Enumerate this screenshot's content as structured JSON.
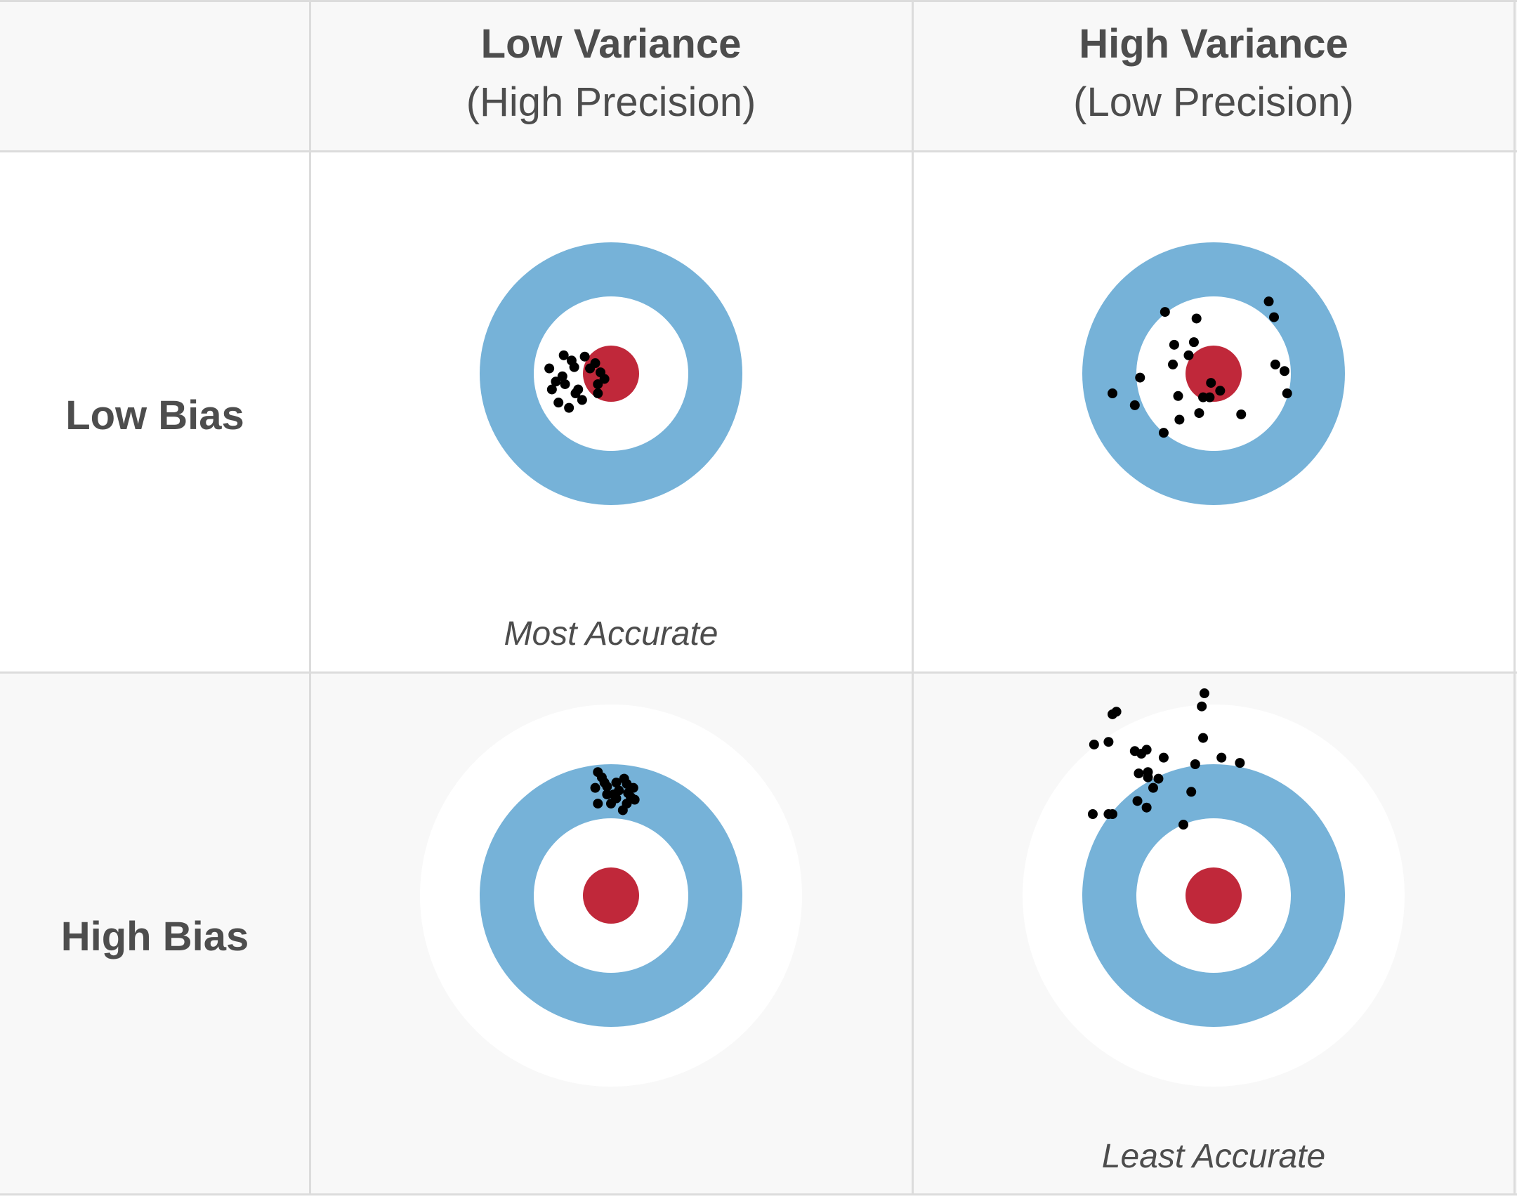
{
  "columns": [
    {
      "title": "Low Variance",
      "subtitle": "(High Precision)"
    },
    {
      "title": "High Variance",
      "subtitle": "(Low Precision)"
    }
  ],
  "rows": [
    {
      "label": "Low Bias"
    },
    {
      "label": "High Bias"
    }
  ],
  "captions": {
    "most_accurate": "Most Accurate",
    "least_accurate": "Least Accurate"
  },
  "colors": {
    "bullseye": "#c0283a",
    "ring": "#76b2d8",
    "outer": "#ffffff",
    "hits": "#000000",
    "grid_line": "#dcdcdc",
    "shaded_cell": "#f8f8f8",
    "text": "#4d4d4d"
  },
  "targets": [
    {
      "id": "low-bias-low-variance",
      "hits": [
        [
          -0.42,
          0.06
        ],
        [
          -0.37,
          0.02
        ],
        [
          -0.47,
          -0.04
        ],
        [
          -0.36,
          -0.14
        ],
        [
          -0.28,
          -0.05
        ],
        [
          -0.16,
          -0.04
        ],
        [
          -0.05,
          0.04
        ],
        [
          -0.1,
          0.15
        ],
        [
          -0.25,
          0.12
        ],
        [
          -0.32,
          0.26
        ],
        [
          -0.4,
          0.22
        ],
        [
          -0.12,
          -0.08
        ],
        [
          -0.22,
          0.2
        ],
        [
          -0.45,
          0.12
        ],
        [
          -0.2,
          -0.13
        ],
        [
          -0.1,
          0.08
        ],
        [
          -0.35,
          0.08
        ],
        [
          -0.27,
          0.15
        ],
        [
          -0.08,
          -0.01
        ],
        [
          -0.3,
          -0.1
        ]
      ]
    },
    {
      "id": "low-bias-high-variance",
      "hits": [
        [
          -0.37,
          -0.47
        ],
        [
          -0.13,
          -0.42
        ],
        [
          0.42,
          -0.55
        ],
        [
          0.46,
          -0.43
        ],
        [
          -0.3,
          -0.22
        ],
        [
          -0.15,
          -0.24
        ],
        [
          -0.19,
          -0.14
        ],
        [
          -0.31,
          -0.07
        ],
        [
          -0.56,
          0.03
        ],
        [
          -0.77,
          0.15
        ],
        [
          -0.6,
          0.24
        ],
        [
          0.47,
          -0.07
        ],
        [
          0.54,
          -0.02
        ],
        [
          0.56,
          0.15
        ],
        [
          -0.27,
          0.17
        ],
        [
          -0.08,
          0.18
        ],
        [
          -0.03,
          0.18
        ],
        [
          -0.02,
          0.07
        ],
        [
          0.05,
          0.13
        ],
        [
          0.21,
          0.31
        ],
        [
          -0.11,
          0.3
        ],
        [
          -0.26,
          0.35
        ],
        [
          -0.38,
          0.45
        ]
      ]
    },
    {
      "id": "high-bias-low-variance",
      "hits": [
        [
          -0.1,
          -0.94
        ],
        [
          -0.07,
          -0.9
        ],
        [
          -0.03,
          -0.83
        ],
        [
          0.04,
          -0.86
        ],
        [
          0.1,
          -0.89
        ],
        [
          0.12,
          -0.85
        ],
        [
          0.17,
          -0.82
        ],
        [
          0.13,
          -0.78
        ],
        [
          0.18,
          -0.73
        ],
        [
          0.12,
          -0.7
        ],
        [
          0.04,
          -0.74
        ],
        [
          -0.03,
          -0.77
        ],
        [
          -0.1,
          -0.7
        ],
        [
          -0.12,
          -0.82
        ],
        [
          0.09,
          -0.65
        ],
        [
          0.06,
          -0.8
        ],
        [
          0.0,
          -0.7
        ],
        [
          0.15,
          -0.75
        ],
        [
          -0.05,
          -0.86
        ],
        [
          0.02,
          -0.77
        ]
      ]
    },
    {
      "id": "high-bias-high-variance",
      "hits": [
        [
          -0.07,
          -1.54
        ],
        [
          -0.09,
          -1.44
        ],
        [
          -0.74,
          -1.4
        ],
        [
          -0.77,
          -1.38
        ],
        [
          -0.91,
          -1.15
        ],
        [
          -0.8,
          -1.17
        ],
        [
          -0.08,
          -1.2
        ],
        [
          -0.6,
          -1.1
        ],
        [
          -0.55,
          -1.08
        ],
        [
          -0.51,
          -1.11
        ],
        [
          -0.38,
          -1.05
        ],
        [
          0.06,
          -1.05
        ],
        [
          0.2,
          -1.01
        ],
        [
          -0.14,
          -1.0
        ],
        [
          -0.57,
          -0.93
        ],
        [
          -0.5,
          -0.9
        ],
        [
          -0.5,
          -0.94
        ],
        [
          -0.42,
          -0.89
        ],
        [
          -0.46,
          -0.82
        ],
        [
          -0.17,
          -0.79
        ],
        [
          -0.58,
          -0.72
        ],
        [
          -0.51,
          -0.67
        ],
        [
          -0.8,
          -0.62
        ],
        [
          -0.77,
          -0.62
        ],
        [
          -0.92,
          -0.62
        ],
        [
          -0.23,
          -0.54
        ]
      ]
    }
  ]
}
